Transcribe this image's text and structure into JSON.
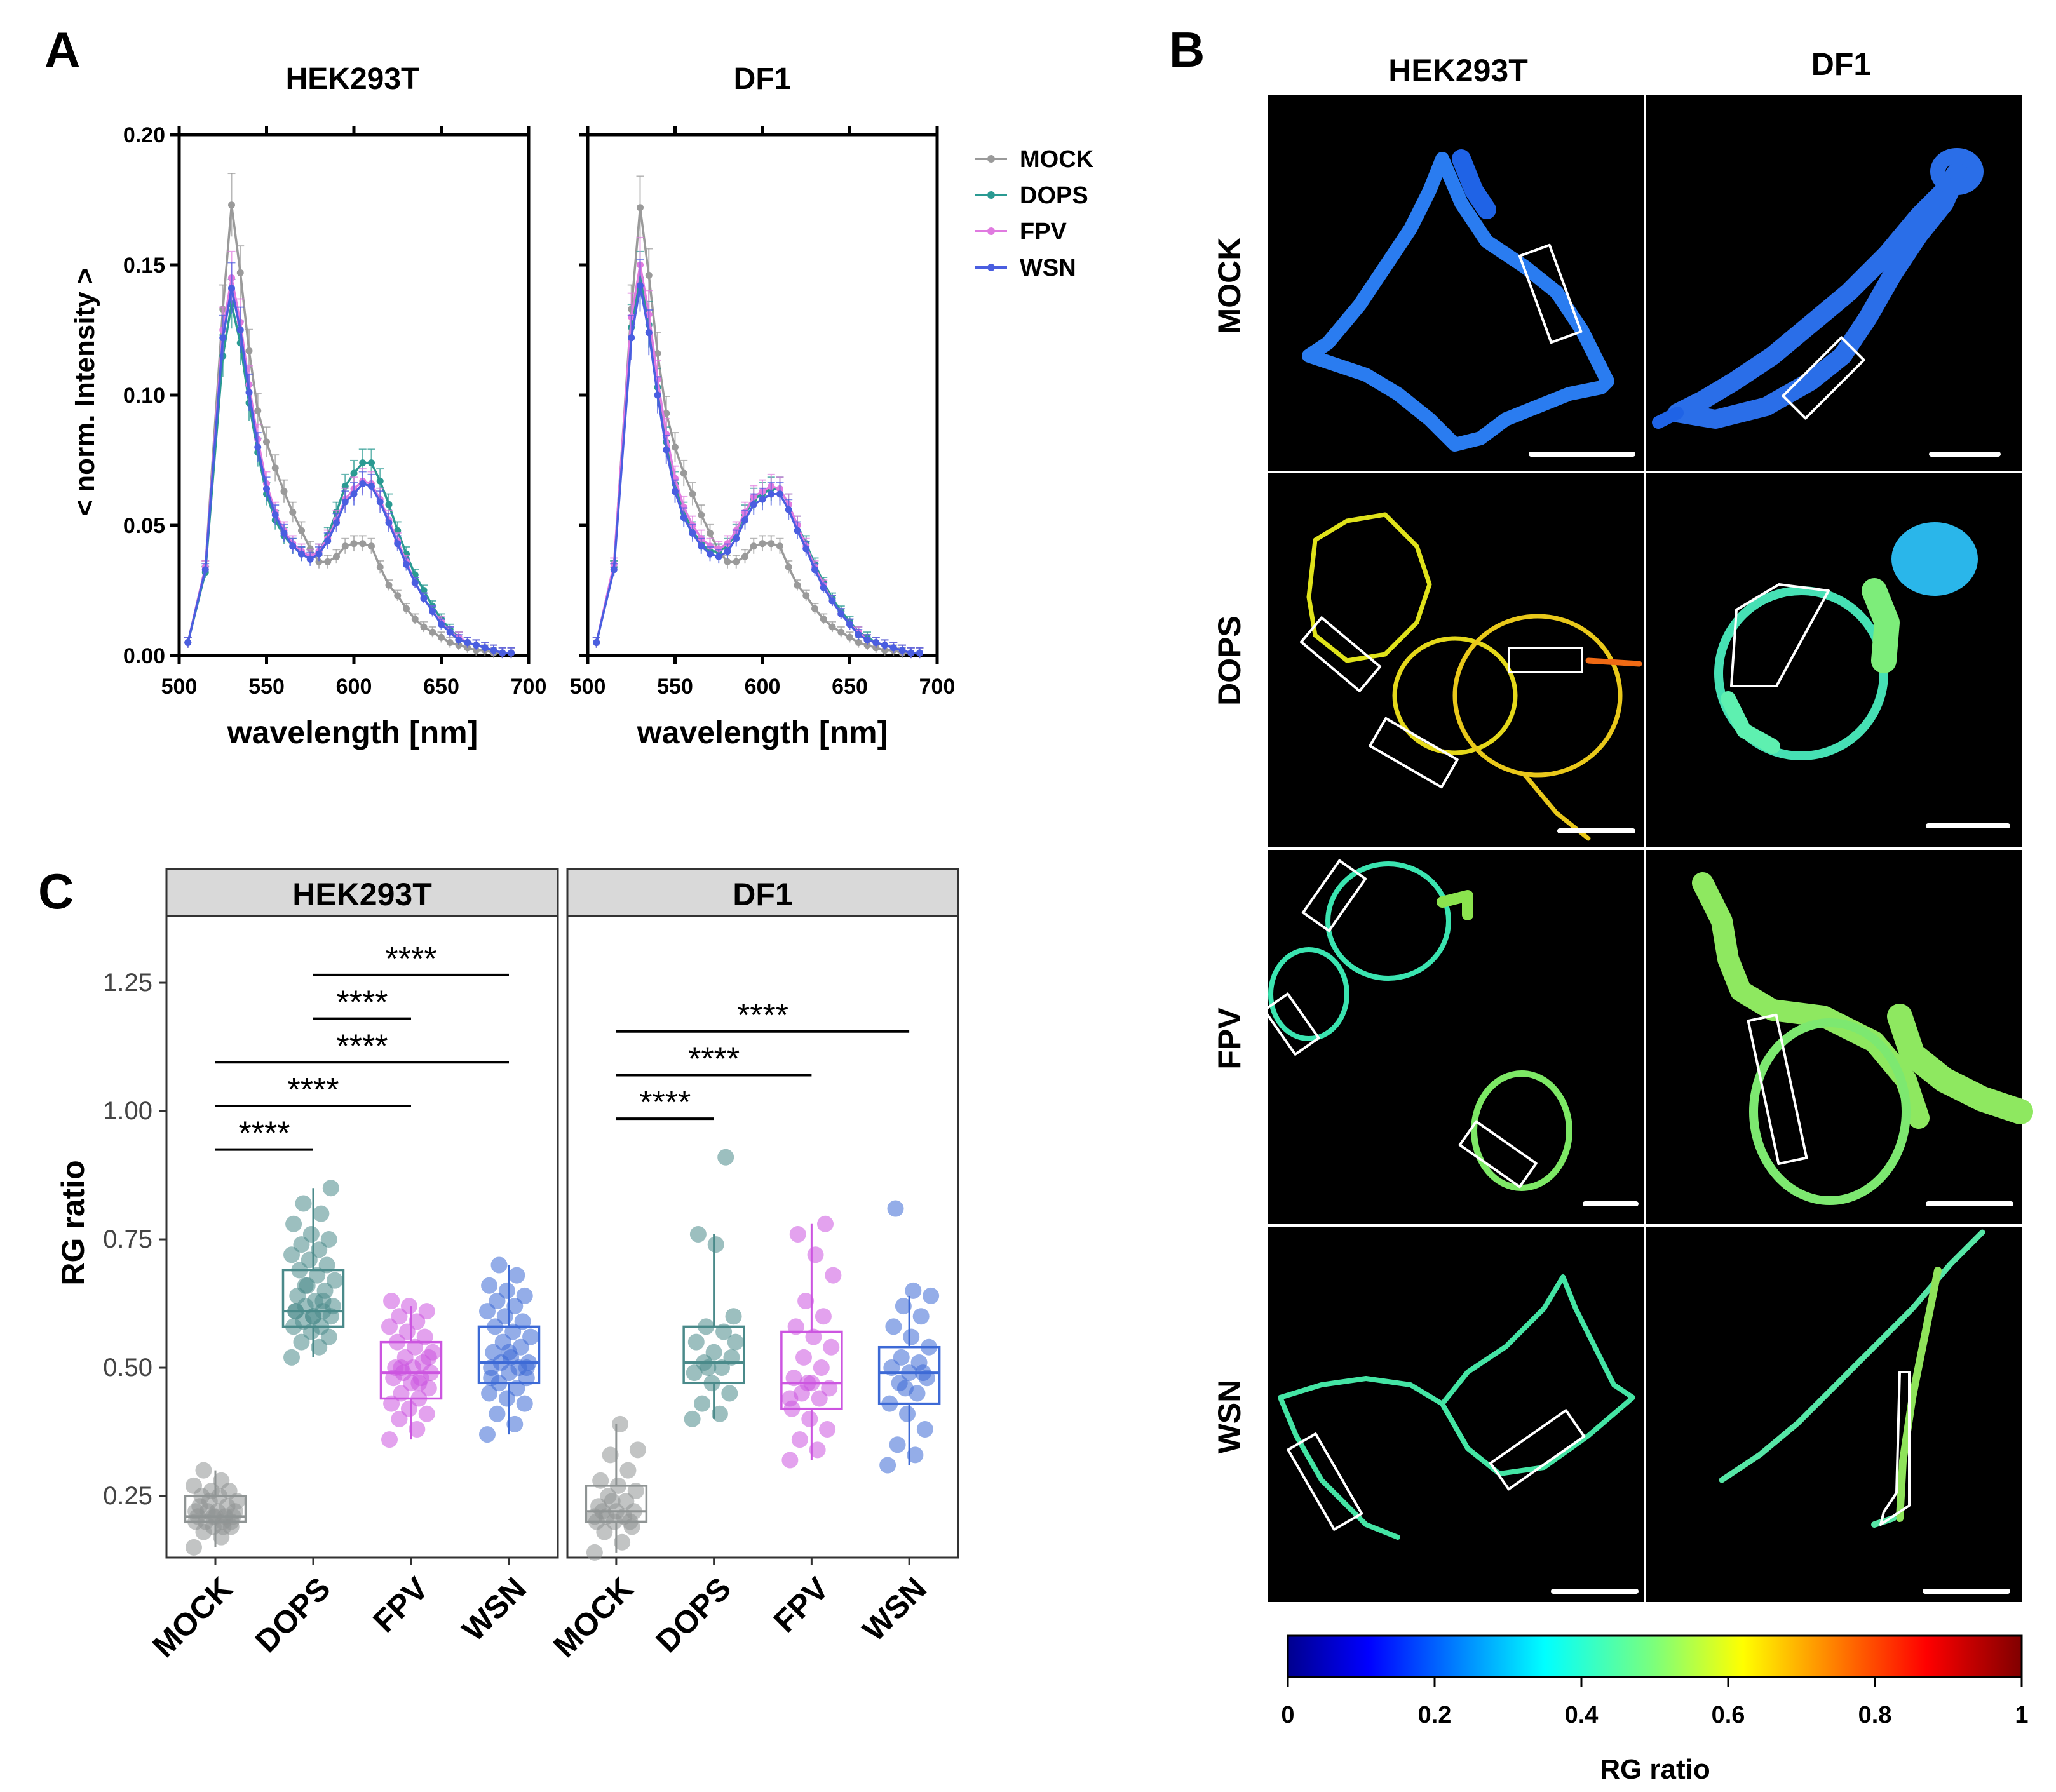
{
  "panel_letters": {
    "a": "A",
    "b": "B",
    "c": "C"
  },
  "spectra_legend": [
    {
      "name": "MOCK",
      "color": "#9a9a9a"
    },
    {
      "name": "DOPS",
      "color": "#2a9a92"
    },
    {
      "name": "FPV",
      "color": "#e07ae0"
    },
    {
      "name": "WSN",
      "color": "#4a5ee0"
    }
  ],
  "micro": {
    "col_labels": [
      "HEK293T",
      "DF1"
    ],
    "row_labels": [
      "MOCK",
      "DOPS",
      "FPV",
      "WSN"
    ],
    "colorbar": {
      "label": "RG ratio",
      "ticks": [
        "0",
        "0.2",
        "0.4",
        "0.6",
        "0.8",
        "1"
      ]
    }
  },
  "chart_data": [
    {
      "type": "line",
      "panel": "A",
      "title": "HEK293T",
      "xlabel": "wavelength [nm]",
      "ylabel": "< norm. Intensity >",
      "xlim": [
        500,
        700
      ],
      "ylim": [
        0,
        0.2
      ],
      "xticks": [
        "500",
        "550",
        "600",
        "650",
        "700"
      ],
      "yticks": [
        "0.00",
        "0.05",
        "0.10",
        "0.15",
        "0.20"
      ],
      "x": [
        505,
        515,
        525,
        530,
        535,
        540,
        545,
        550,
        555,
        560,
        565,
        570,
        575,
        580,
        585,
        590,
        595,
        600,
        605,
        610,
        615,
        620,
        625,
        630,
        635,
        640,
        645,
        650,
        655,
        660,
        665,
        670,
        675,
        680,
        685,
        690
      ],
      "series": [
        {
          "name": "MOCK",
          "values": [
            0.005,
            0.034,
            0.133,
            0.173,
            0.147,
            0.117,
            0.094,
            0.082,
            0.072,
            0.063,
            0.055,
            0.048,
            0.041,
            0.036,
            0.036,
            0.038,
            0.042,
            0.043,
            0.043,
            0.042,
            0.034,
            0.027,
            0.023,
            0.018,
            0.014,
            0.011,
            0.009,
            0.007,
            0.005,
            0.004,
            0.003,
            0.002,
            0.002,
            0.001,
            0.001,
            0.001
          ]
        },
        {
          "name": "DOPS",
          "values": [
            0.005,
            0.032,
            0.115,
            0.135,
            0.12,
            0.097,
            0.078,
            0.062,
            0.052,
            0.046,
            0.042,
            0.039,
            0.038,
            0.04,
            0.046,
            0.055,
            0.065,
            0.07,
            0.074,
            0.074,
            0.067,
            0.058,
            0.048,
            0.039,
            0.031,
            0.025,
            0.019,
            0.014,
            0.01,
            0.007,
            0.005,
            0.004,
            0.003,
            0.002,
            0.001,
            0.001
          ]
        },
        {
          "name": "FPV",
          "values": [
            0.005,
            0.034,
            0.125,
            0.145,
            0.128,
            0.104,
            0.083,
            0.066,
            0.055,
            0.048,
            0.043,
            0.04,
            0.038,
            0.04,
            0.045,
            0.052,
            0.06,
            0.064,
            0.067,
            0.066,
            0.06,
            0.052,
            0.044,
            0.036,
            0.028,
            0.022,
            0.017,
            0.013,
            0.009,
            0.007,
            0.005,
            0.004,
            0.003,
            0.002,
            0.001,
            0.001
          ]
        },
        {
          "name": "WSN",
          "values": [
            0.005,
            0.033,
            0.122,
            0.141,
            0.125,
            0.101,
            0.08,
            0.064,
            0.054,
            0.047,
            0.042,
            0.039,
            0.037,
            0.039,
            0.044,
            0.051,
            0.059,
            0.062,
            0.066,
            0.065,
            0.059,
            0.051,
            0.043,
            0.035,
            0.028,
            0.022,
            0.017,
            0.012,
            0.009,
            0.006,
            0.005,
            0.004,
            0.003,
            0.002,
            0.001,
            0.001
          ]
        }
      ]
    },
    {
      "type": "line",
      "panel": "A",
      "title": "DF1",
      "xlabel": "wavelength [nm]",
      "ylabel": "",
      "xlim": [
        500,
        700
      ],
      "ylim": [
        0,
        0.2
      ],
      "xticks": [
        "500",
        "550",
        "600",
        "650",
        "700"
      ],
      "x": [
        505,
        515,
        525,
        530,
        535,
        540,
        545,
        550,
        555,
        560,
        565,
        570,
        575,
        580,
        585,
        590,
        595,
        600,
        605,
        610,
        615,
        620,
        625,
        630,
        635,
        640,
        645,
        650,
        655,
        660,
        665,
        670,
        675,
        680,
        685,
        690
      ],
      "series": [
        {
          "name": "MOCK",
          "values": [
            0.005,
            0.034,
            0.133,
            0.172,
            0.146,
            0.116,
            0.093,
            0.08,
            0.07,
            0.062,
            0.054,
            0.047,
            0.04,
            0.036,
            0.036,
            0.038,
            0.042,
            0.043,
            0.043,
            0.042,
            0.034,
            0.027,
            0.023,
            0.018,
            0.014,
            0.011,
            0.009,
            0.007,
            0.005,
            0.004,
            0.003,
            0.002,
            0.002,
            0.001,
            0.001,
            0.001
          ]
        },
        {
          "name": "DOPS",
          "values": [
            0.005,
            0.034,
            0.126,
            0.145,
            0.127,
            0.103,
            0.082,
            0.066,
            0.055,
            0.048,
            0.043,
            0.04,
            0.04,
            0.042,
            0.047,
            0.054,
            0.06,
            0.062,
            0.064,
            0.064,
            0.058,
            0.05,
            0.043,
            0.035,
            0.028,
            0.022,
            0.017,
            0.013,
            0.009,
            0.007,
            0.005,
            0.004,
            0.003,
            0.002,
            0.001,
            0.001
          ]
        },
        {
          "name": "FPV",
          "values": [
            0.005,
            0.035,
            0.13,
            0.15,
            0.131,
            0.106,
            0.085,
            0.068,
            0.057,
            0.05,
            0.045,
            0.042,
            0.041,
            0.043,
            0.048,
            0.055,
            0.061,
            0.063,
            0.065,
            0.064,
            0.058,
            0.05,
            0.042,
            0.034,
            0.027,
            0.021,
            0.016,
            0.012,
            0.009,
            0.006,
            0.005,
            0.004,
            0.003,
            0.002,
            0.001,
            0.001
          ]
        },
        {
          "name": "WSN",
          "values": [
            0.005,
            0.033,
            0.122,
            0.142,
            0.124,
            0.1,
            0.079,
            0.063,
            0.053,
            0.047,
            0.042,
            0.039,
            0.038,
            0.04,
            0.045,
            0.052,
            0.058,
            0.06,
            0.062,
            0.062,
            0.056,
            0.048,
            0.041,
            0.033,
            0.026,
            0.021,
            0.016,
            0.012,
            0.008,
            0.006,
            0.005,
            0.004,
            0.003,
            0.002,
            0.001,
            0.001
          ]
        }
      ]
    },
    {
      "type": "box",
      "panel": "C",
      "facets": [
        "HEK293T",
        "DF1"
      ],
      "categories": [
        "MOCK",
        "DOPS",
        "FPV",
        "WSN"
      ],
      "ylabel": "RG ratio",
      "ylim": [
        0.13,
        1.38
      ],
      "yticks": [
        "0.25",
        "0.50",
        "0.75",
        "1.00",
        "1.25"
      ],
      "colors": {
        "MOCK": "#8f9494",
        "DOPS": "#4a8a8a",
        "FPV": "#cc55e0",
        "WSN": "#3d6ad6"
      },
      "boxes": {
        "HEK293T": {
          "MOCK": {
            "q1": 0.2,
            "median": 0.21,
            "q3": 0.25,
            "min": 0.15,
            "max": 0.3
          },
          "DOPS": {
            "q1": 0.58,
            "median": 0.61,
            "q3": 0.69,
            "min": 0.52,
            "max": 0.85
          },
          "FPV": {
            "q1": 0.44,
            "median": 0.49,
            "q3": 0.55,
            "min": 0.36,
            "max": 0.62
          },
          "WSN": {
            "q1": 0.47,
            "median": 0.51,
            "q3": 0.58,
            "min": 0.37,
            "max": 0.7
          }
        },
        "DF1": {
          "MOCK": {
            "q1": 0.2,
            "median": 0.22,
            "q3": 0.27,
            "min": 0.14,
            "max": 0.39
          },
          "DOPS": {
            "q1": 0.47,
            "median": 0.51,
            "q3": 0.58,
            "min": 0.4,
            "max": 0.76
          },
          "FPV": {
            "q1": 0.42,
            "median": 0.47,
            "q3": 0.57,
            "min": 0.32,
            "max": 0.78
          },
          "WSN": {
            "q1": 0.43,
            "median": 0.49,
            "q3": 0.54,
            "min": 0.31,
            "max": 0.64
          }
        }
      },
      "points": {
        "HEK293T": {
          "MOCK": [
            0.15,
            0.17,
            0.18,
            0.19,
            0.19,
            0.2,
            0.2,
            0.2,
            0.21,
            0.21,
            0.21,
            0.21,
            0.22,
            0.22,
            0.22,
            0.23,
            0.23,
            0.24,
            0.24,
            0.25,
            0.25,
            0.26,
            0.26,
            0.27,
            0.28,
            0.3,
            0.2,
            0.21,
            0.22,
            0.19
          ],
          "DOPS": [
            0.52,
            0.54,
            0.55,
            0.56,
            0.57,
            0.58,
            0.58,
            0.59,
            0.6,
            0.6,
            0.61,
            0.61,
            0.62,
            0.62,
            0.63,
            0.64,
            0.65,
            0.66,
            0.67,
            0.68,
            0.69,
            0.7,
            0.71,
            0.72,
            0.73,
            0.74,
            0.75,
            0.76,
            0.78,
            0.8,
            0.82,
            0.85,
            0.6,
            0.61,
            0.63,
            0.66
          ],
          "FPV": [
            0.36,
            0.38,
            0.4,
            0.41,
            0.42,
            0.43,
            0.44,
            0.45,
            0.46,
            0.47,
            0.48,
            0.48,
            0.49,
            0.49,
            0.5,
            0.5,
            0.51,
            0.52,
            0.53,
            0.54,
            0.55,
            0.56,
            0.57,
            0.58,
            0.59,
            0.6,
            0.61,
            0.62,
            0.63,
            0.47,
            0.5,
            0.52
          ],
          "WSN": [
            0.37,
            0.39,
            0.41,
            0.43,
            0.44,
            0.45,
            0.46,
            0.47,
            0.48,
            0.49,
            0.5,
            0.5,
            0.51,
            0.51,
            0.52,
            0.53,
            0.54,
            0.55,
            0.56,
            0.57,
            0.58,
            0.59,
            0.6,
            0.61,
            0.62,
            0.63,
            0.64,
            0.65,
            0.66,
            0.68,
            0.7,
            0.5,
            0.53,
            0.48
          ]
        },
        "DF1": {
          "MOCK": [
            0.14,
            0.16,
            0.18,
            0.19,
            0.2,
            0.2,
            0.21,
            0.21,
            0.22,
            0.22,
            0.23,
            0.24,
            0.25,
            0.26,
            0.27,
            0.28,
            0.3,
            0.33,
            0.34,
            0.39,
            0.22,
            0.2,
            0.24,
            0.21
          ],
          "DOPS": [
            0.4,
            0.41,
            0.43,
            0.45,
            0.47,
            0.49,
            0.5,
            0.51,
            0.52,
            0.53,
            0.55,
            0.57,
            0.58,
            0.6,
            0.74,
            0.76,
            0.91,
            0.5,
            0.55
          ],
          "FPV": [
            0.32,
            0.34,
            0.36,
            0.38,
            0.4,
            0.42,
            0.44,
            0.45,
            0.46,
            0.47,
            0.48,
            0.5,
            0.52,
            0.54,
            0.56,
            0.58,
            0.6,
            0.63,
            0.68,
            0.72,
            0.76,
            0.78,
            0.47,
            0.44
          ],
          "WSN": [
            0.31,
            0.33,
            0.35,
            0.38,
            0.41,
            0.43,
            0.45,
            0.47,
            0.48,
            0.49,
            0.5,
            0.51,
            0.52,
            0.54,
            0.56,
            0.58,
            0.6,
            0.62,
            0.64,
            0.65,
            0.81,
            0.49,
            0.46
          ]
        }
      },
      "significance": {
        "HEK293T": [
          {
            "from": "MOCK",
            "to": "DOPS",
            "y": 0.925,
            "label": "****"
          },
          {
            "from": "MOCK",
            "to": "FPV",
            "y": 1.01,
            "label": "****"
          },
          {
            "from": "MOCK",
            "to": "WSN",
            "y": 1.095,
            "label": "****"
          },
          {
            "from": "DOPS",
            "to": "FPV",
            "y": 1.18,
            "label": "****"
          },
          {
            "from": "DOPS",
            "to": "WSN",
            "y": 1.265,
            "label": "****"
          }
        ],
        "DF1": [
          {
            "from": "MOCK",
            "to": "DOPS",
            "y": 0.985,
            "label": "****"
          },
          {
            "from": "MOCK",
            "to": "FPV",
            "y": 1.07,
            "label": "****"
          },
          {
            "from": "MOCK",
            "to": "WSN",
            "y": 1.155,
            "label": "****"
          }
        ]
      }
    }
  ]
}
